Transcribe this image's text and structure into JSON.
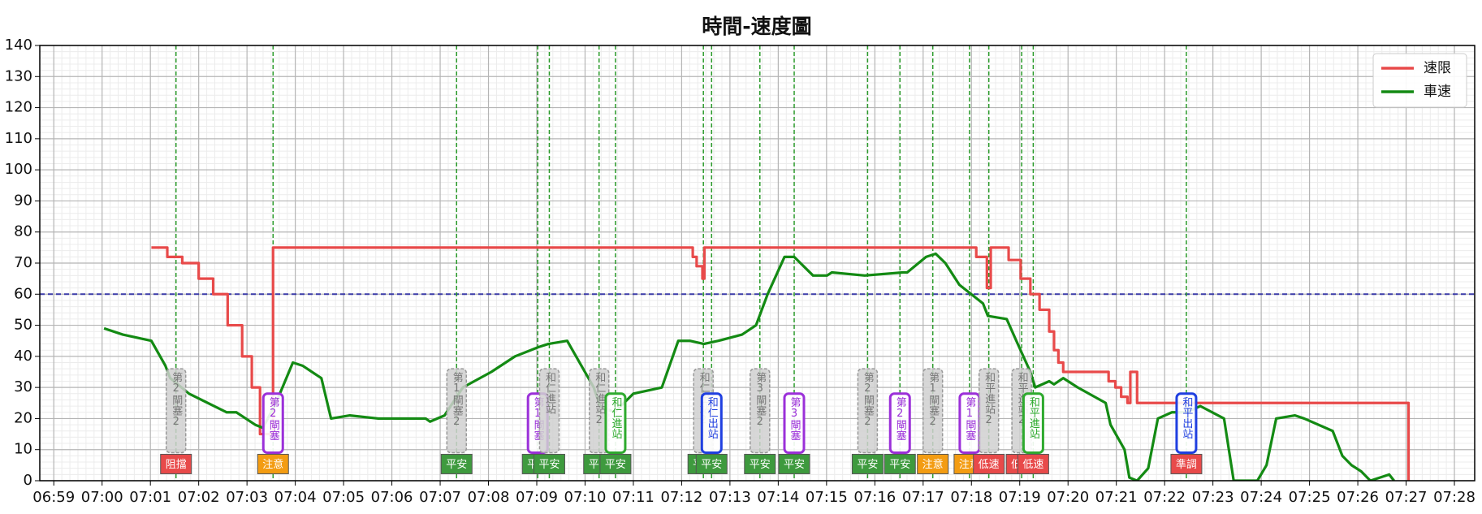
{
  "chart_data": {
    "type": "line",
    "title": "時間-速度圖",
    "xlim": [
      418.71,
      448.42
    ],
    "ylim": [
      0,
      140
    ],
    "yticks": [
      0,
      10,
      20,
      30,
      40,
      50,
      60,
      70,
      80,
      90,
      100,
      110,
      120,
      130,
      140
    ],
    "xticks": [
      {
        "value": 419,
        "label": "06:59"
      },
      {
        "value": 420,
        "label": "07:00"
      },
      {
        "value": 421,
        "label": "07:01"
      },
      {
        "value": 422,
        "label": "07:02"
      },
      {
        "value": 423,
        "label": "07:03"
      },
      {
        "value": 424,
        "label": "07:04"
      },
      {
        "value": 425,
        "label": "07:05"
      },
      {
        "value": 426,
        "label": "07:06"
      },
      {
        "value": 427,
        "label": "07:07"
      },
      {
        "value": 428,
        "label": "07:08"
      },
      {
        "value": 429,
        "label": "07:09"
      },
      {
        "value": 430,
        "label": "07:10"
      },
      {
        "value": 431,
        "label": "07:11"
      },
      {
        "value": 432,
        "label": "07:12"
      },
      {
        "value": 433,
        "label": "07:13"
      },
      {
        "value": 434,
        "label": "07:14"
      },
      {
        "value": 435,
        "label": "07:15"
      },
      {
        "value": 436,
        "label": "07:16"
      },
      {
        "value": 437,
        "label": "07:17"
      },
      {
        "value": 438,
        "label": "07:18"
      },
      {
        "value": 439,
        "label": "07:19"
      },
      {
        "value": 440,
        "label": "07:20"
      },
      {
        "value": 441,
        "label": "07:21"
      },
      {
        "value": 442,
        "label": "07:22"
      },
      {
        "value": 443,
        "label": "07:23"
      },
      {
        "value": 444,
        "label": "07:24"
      },
      {
        "value": 445,
        "label": "07:25"
      },
      {
        "value": 446,
        "label": "07:26"
      },
      {
        "value": 447,
        "label": "07:27"
      },
      {
        "value": 448,
        "label": "07:28"
      }
    ],
    "grid": true,
    "minor_grid": true,
    "legend": "upper right",
    "hline": {
      "value": 60,
      "color": "#3a3aa8"
    },
    "series": [
      {
        "name": "速限",
        "color": "#e84a4a",
        "step": true,
        "x": [
          421.02,
          421.35,
          421.66,
          422.0,
          422.3,
          422.6,
          422.9,
          423.1,
          423.27,
          423.54,
          432.23,
          432.31,
          432.43,
          432.47,
          438.1,
          438.32,
          438.4,
          438.77,
          439.02,
          439.22,
          439.41,
          439.61,
          439.71,
          439.8,
          439.9,
          440.84,
          440.98,
          441.1,
          441.23,
          441.29,
          441.43,
          447.05
        ],
        "values": [
          75,
          72,
          70,
          65,
          60,
          50,
          40,
          30,
          15,
          75,
          72,
          69,
          65,
          75,
          72,
          62,
          75,
          71,
          65,
          60,
          55,
          48,
          42,
          38,
          35,
          32,
          30,
          27,
          25,
          35,
          25,
          0
        ]
      },
      {
        "name": "車速",
        "color": "#138a13",
        "x": [
          420.04,
          420.43,
          421.02,
          421.31,
          421.41,
          421.8,
          422.19,
          422.58,
          422.78,
          423.17,
          423.33,
          423.6,
          423.95,
          424.15,
          424.54,
          424.74,
          425.13,
          425.72,
          426.7,
          426.79,
          427.09,
          427.47,
          428.06,
          428.55,
          429.04,
          429.24,
          429.63,
          430.18,
          430.31,
          430.61,
          431.0,
          431.59,
          431.93,
          432.17,
          432.46,
          432.76,
          433.25,
          433.54,
          433.78,
          434.13,
          434.33,
          434.72,
          435.01,
          435.11,
          435.79,
          436.58,
          436.67,
          437.06,
          437.26,
          437.46,
          437.75,
          438.24,
          438.34,
          438.73,
          438.93,
          439.22,
          439.32,
          439.61,
          439.71,
          439.9,
          440.2,
          440.78,
          440.88,
          441.17,
          441.27,
          441.43,
          441.66,
          441.86,
          442.15,
          442.45,
          442.74,
          443.23,
          443.43,
          443.92,
          444.11,
          444.31,
          444.7,
          444.89,
          445.48,
          445.68,
          445.87,
          446.07,
          446.26,
          446.65,
          446.75
        ],
        "values": [
          49,
          47,
          45,
          37,
          33,
          28,
          25,
          22,
          22,
          18,
          17,
          25,
          38,
          37,
          33,
          20,
          21,
          20,
          20,
          19,
          21,
          30,
          35,
          40,
          43,
          44,
          45,
          30,
          24,
          22,
          28,
          30,
          45,
          45,
          44,
          45,
          47,
          50,
          60,
          72,
          72,
          66,
          66,
          67,
          66,
          67,
          67,
          72,
          73,
          70,
          63,
          57,
          53,
          52,
          45,
          35,
          30,
          32,
          31,
          33,
          30,
          25,
          18,
          10,
          1,
          0,
          4,
          20,
          22,
          22,
          24,
          20,
          0,
          0,
          5,
          20,
          21,
          20,
          16,
          8,
          5,
          3,
          0,
          2,
          0
        ]
      }
    ],
    "events": [
      {
        "x": 421.53,
        "label": "第2閘塞2",
        "color": "#c8c8c8",
        "status": "阻擋",
        "status_color": "#e84a4a"
      },
      {
        "x": 423.54,
        "label": "第2閘塞",
        "color": "#9b30d9",
        "status": "注意",
        "status_color": "#f39c12"
      },
      {
        "x": 427.34,
        "label": "第1閘塞2",
        "color": "#c8c8c8",
        "status": "平安",
        "status_color": "#3e9a3e"
      },
      {
        "x": 429.02,
        "label": "第1閘塞",
        "color": "#9b30d9",
        "status": "平安",
        "status_color": "#3e9a3e"
      },
      {
        "x": 429.26,
        "label": "和仁進站",
        "color": "#c8c8c8",
        "status": "平安",
        "status_color": "#3e9a3e"
      },
      {
        "x": 430.29,
        "label": "和仁進站2",
        "color": "#c8c8c8",
        "status": "平安",
        "status_color": "#3e9a3e"
      },
      {
        "x": 430.63,
        "label": "和仁進站",
        "color": "#2eaa2e",
        "status": "平安",
        "status_color": "#3e9a3e"
      },
      {
        "x": 432.45,
        "label": "和仁出站2",
        "color": "#c8c8c8",
        "status": "平安",
        "status_color": "#3e9a3e"
      },
      {
        "x": 432.62,
        "label": "和仁出站",
        "color": "#1f3fe0",
        "status": "平安",
        "status_color": "#3e9a3e"
      },
      {
        "x": 433.62,
        "label": "第3閘塞2",
        "color": "#c8c8c8",
        "status": "平安",
        "status_color": "#3e9a3e"
      },
      {
        "x": 434.33,
        "label": "第3閘塞",
        "color": "#9b30d9",
        "status": "平安",
        "status_color": "#3e9a3e"
      },
      {
        "x": 435.85,
        "label": "第2閘塞2",
        "color": "#c8c8c8",
        "status": "平安",
        "status_color": "#3e9a3e"
      },
      {
        "x": 436.52,
        "label": "第2閘塞",
        "color": "#9b30d9",
        "status": "平安",
        "status_color": "#3e9a3e"
      },
      {
        "x": 437.2,
        "label": "第1閘塞2",
        "color": "#c8c8c8",
        "status": "注意",
        "status_color": "#f39c12"
      },
      {
        "x": 437.96,
        "label": "第1閘塞",
        "color": "#9b30d9",
        "status": "注意",
        "status_color": "#f39c12"
      },
      {
        "x": 438.36,
        "label": "和平進站2",
        "color": "#c8c8c8",
        "status": "低速",
        "status_color": "#e84a4a"
      },
      {
        "x": 439.04,
        "label": "和平進站2",
        "color": "#c8c8c8",
        "status": "低速",
        "status_color": "#e84a4a"
      },
      {
        "x": 439.28,
        "label": "和平進站",
        "color": "#2eaa2e",
        "status": "低速",
        "status_color": "#e84a4a"
      },
      {
        "x": 442.45,
        "label": "和平出站",
        "color": "#1f3fe0",
        "status": "準調",
        "status_color": "#e84a4a"
      }
    ]
  }
}
